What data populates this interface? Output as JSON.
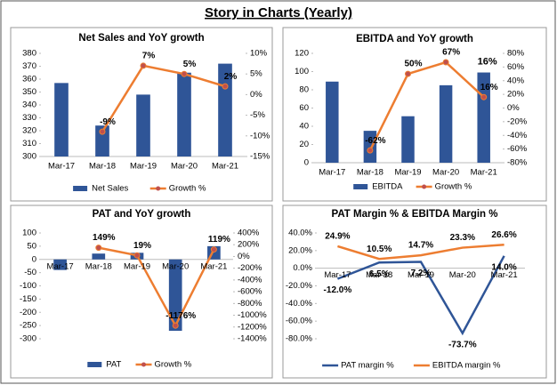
{
  "title": "Story in Charts (Yearly)",
  "chart_data": [
    {
      "type": "combo",
      "title": "Net Sales and YoY growth",
      "categories": [
        "Mar-17",
        "Mar-18",
        "Mar-19",
        "Mar-20",
        "Mar-21"
      ],
      "series": [
        {
          "name": "Net Sales",
          "type": "bar",
          "color": "#2f5597",
          "values": [
            357,
            324,
            348,
            365,
            372
          ]
        },
        {
          "name": "Growth %",
          "type": "line",
          "axis": "y2",
          "color": "#ed7d31",
          "markers": true,
          "label_position": "above",
          "values": [
            null,
            -9,
            7,
            5,
            2
          ],
          "value_labels": [
            null,
            "-9%",
            "7%",
            "5%",
            "2%"
          ]
        }
      ],
      "ylim": [
        300,
        380
      ],
      "yticks": [
        300,
        310,
        320,
        330,
        340,
        350,
        360,
        370,
        380
      ],
      "y2lim": [
        -15,
        10
      ],
      "y2ticks": [
        {
          "value": -15,
          "label": "-15%"
        },
        {
          "value": -10,
          "label": "-10%"
        },
        {
          "value": -5,
          "label": "-5%"
        },
        {
          "value": 0,
          "label": "0%"
        },
        {
          "value": 5,
          "label": "5%"
        },
        {
          "value": 10,
          "label": "10%"
        }
      ],
      "legend": "bottom"
    },
    {
      "type": "combo",
      "title": "EBITDA and YoY growth",
      "categories": [
        "Mar-17",
        "Mar-18",
        "Mar-19",
        "Mar-20",
        "Mar-21"
      ],
      "series": [
        {
          "name": "EBITDA",
          "type": "bar",
          "color": "#2f5597",
          "values": [
            89,
            35,
            51,
            85,
            99
          ]
        },
        {
          "name": "Growth %",
          "type": "line",
          "axis": "y2",
          "color": "#ed7d31",
          "markers": true,
          "label_position": "above",
          "values": [
            null,
            -62,
            50,
            67,
            16
          ],
          "value_labels": [
            null,
            "-62%",
            "50%",
            "67%",
            "16%"
          ]
        }
      ],
      "annotation": "16%",
      "ylim": [
        0,
        120
      ],
      "yticks": [
        0,
        20,
        40,
        60,
        80,
        100,
        120
      ],
      "y2lim": [
        -80,
        80
      ],
      "y2ticks": [
        {
          "value": -80,
          "label": "-80%"
        },
        {
          "value": -60,
          "label": "-60%"
        },
        {
          "value": -40,
          "label": "-40%"
        },
        {
          "value": -20,
          "label": "-20%"
        },
        {
          "value": 0,
          "label": "0%"
        },
        {
          "value": 20,
          "label": "20%"
        },
        {
          "value": 40,
          "label": "40%"
        },
        {
          "value": 60,
          "label": "60%"
        },
        {
          "value": 80,
          "label": "80%"
        }
      ],
      "legend": "bottom"
    },
    {
      "type": "combo",
      "title": "PAT and YoY growth",
      "categories": [
        "Mar-17",
        "Mar-18",
        "Mar-19",
        "Mar-20",
        "Mar-21"
      ],
      "series": [
        {
          "name": "PAT",
          "type": "bar",
          "color": "#2f5597",
          "values": [
            -40,
            22,
            25,
            -270,
            50
          ]
        },
        {
          "name": "Growth %",
          "type": "line",
          "axis": "y2",
          "color": "#ed7d31",
          "markers": true,
          "label_position": "above",
          "values": [
            null,
            149,
            19,
            -1176,
            119
          ],
          "value_labels": [
            null,
            "149%",
            "19%",
            "-1176%",
            "119%"
          ]
        }
      ],
      "ylim": [
        -300,
        100
      ],
      "yticks": [
        -300,
        -250,
        -200,
        -150,
        -100,
        -50,
        0,
        50,
        100
      ],
      "y2lim": [
        -1400,
        400
      ],
      "y2ticks": [
        {
          "value": -1400,
          "label": "-1400%"
        },
        {
          "value": -1200,
          "label": "-1200%"
        },
        {
          "value": -1000,
          "label": "-1000%"
        },
        {
          "value": -800,
          "label": "-800%"
        },
        {
          "value": -600,
          "label": "-600%"
        },
        {
          "value": -400,
          "label": "-400%"
        },
        {
          "value": -200,
          "label": "-200%"
        },
        {
          "value": 0,
          "label": "0%"
        },
        {
          "value": 200,
          "label": "200%"
        },
        {
          "value": 400,
          "label": "400%"
        }
      ],
      "legend": "bottom"
    },
    {
      "type": "line",
      "title": "PAT Margin % & EBITDA Margin %",
      "categories": [
        "Mar-17",
        "Mar-18",
        "Mar-19",
        "Mar-20",
        "Mar-21"
      ],
      "series": [
        {
          "name": "PAT margin %",
          "type": "line",
          "color": "#2f5597",
          "markers": false,
          "label_position": "below",
          "values": [
            -12.0,
            6.5,
            7.2,
            -73.7,
            14.0
          ],
          "value_labels": [
            "-12.0%",
            "6.5%",
            "7.2%",
            "-73.7%",
            "14.0%"
          ]
        },
        {
          "name": "EBITDA margin %",
          "type": "line",
          "color": "#ed7d31",
          "markers": false,
          "label_position": "above",
          "values": [
            24.9,
            10.5,
            14.7,
            23.3,
            26.6
          ],
          "value_labels": [
            "24.9%",
            "10.5%",
            "14.7%",
            "23.3%",
            "26.6%"
          ]
        }
      ],
      "ylim": [
        -80,
        40
      ],
      "yticks": [
        {
          "value": -80,
          "label": "-80.0%"
        },
        {
          "value": -60,
          "label": "-60.0%"
        },
        {
          "value": -40,
          "label": "-40.0%"
        },
        {
          "value": -20,
          "label": "-20.0%"
        },
        {
          "value": 0,
          "label": "0.0%"
        },
        {
          "value": 20,
          "label": "20.0%"
        },
        {
          "value": 40,
          "label": "40.0%"
        }
      ],
      "legend": "bottom"
    }
  ]
}
